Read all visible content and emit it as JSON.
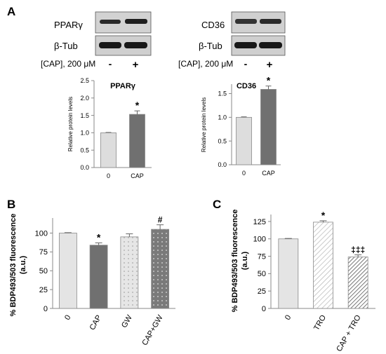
{
  "panels": {
    "A": "A",
    "B": "B",
    "C": "C"
  },
  "blots": {
    "left": {
      "protein": "PPARγ",
      "loading": "β-Tub"
    },
    "right": {
      "protein": "CD36",
      "loading": "β-Tub"
    },
    "treatment_label": "[CAP], 200 μM",
    "lane_marks": [
      "-",
      "+"
    ]
  },
  "chart_data": [
    {
      "panel": "A",
      "type": "bar",
      "title": "PPARγ",
      "ylabel": "Relative protein levels",
      "categories": [
        "0",
        "CAP"
      ],
      "values": [
        1.0,
        1.53
      ],
      "errors": [
        0.01,
        0.1
      ],
      "annotations": [
        "",
        "*"
      ],
      "ylim": [
        0,
        2.5
      ],
      "yticks": [
        "0.0",
        "0.5",
        "1.0",
        "1.5",
        "2.0",
        "2.5"
      ],
      "bar_colors": [
        "#dddddd",
        "#707070"
      ],
      "bar_patterns": [
        "solid",
        "solid"
      ]
    },
    {
      "panel": "A",
      "type": "bar",
      "title": "CD36",
      "ylabel": "Relative protein levels",
      "categories": [
        "0",
        "CAP"
      ],
      "values": [
        1.0,
        1.59
      ],
      "errors": [
        0.01,
        0.07
      ],
      "annotations": [
        "",
        "*"
      ],
      "ylim": [
        0,
        1.7
      ],
      "yticks": [
        "0.0",
        "0.5",
        "1.0",
        "1.5"
      ],
      "bar_colors": [
        "#dddddd",
        "#707070"
      ],
      "bar_patterns": [
        "solid",
        "solid"
      ]
    },
    {
      "panel": "B",
      "type": "bar",
      "title": "",
      "ylabel": "% BDP493/503 fluorescence (a.u.)",
      "categories": [
        "0",
        "CAP",
        "GW",
        "CAP+GW"
      ],
      "values": [
        100,
        84,
        95,
        105
      ],
      "errors": [
        0.6,
        3,
        4,
        6
      ],
      "annotations": [
        "",
        "*",
        "",
        "#"
      ],
      "ylim": [
        0,
        120
      ],
      "yticks": [
        "0",
        "25",
        "50",
        "75",
        "100"
      ],
      "bar_colors": [
        "#e4e4e4",
        "#707070",
        "#e6e6e6",
        "#777777"
      ],
      "bar_patterns": [
        "solid",
        "solid",
        "dots-dark",
        "dots-light"
      ]
    },
    {
      "panel": "C",
      "type": "bar",
      "title": "",
      "ylabel": "% BDP493/503 fluorescence (a.u.)",
      "categories": [
        "0",
        "TRO",
        "CAP + TRO"
      ],
      "values": [
        100,
        124,
        74
      ],
      "errors": [
        0.6,
        2,
        3
      ],
      "annotations": [
        "",
        "*",
        "‡‡‡"
      ],
      "ylim": [
        0,
        135
      ],
      "yticks": [
        "0",
        "25",
        "50",
        "75",
        "100",
        "125"
      ],
      "bar_colors": [
        "#e4e4e4",
        "#ffffff",
        "#ffffff"
      ],
      "bar_patterns": [
        "solid",
        "hatch-light",
        "hatch-dark"
      ]
    }
  ]
}
